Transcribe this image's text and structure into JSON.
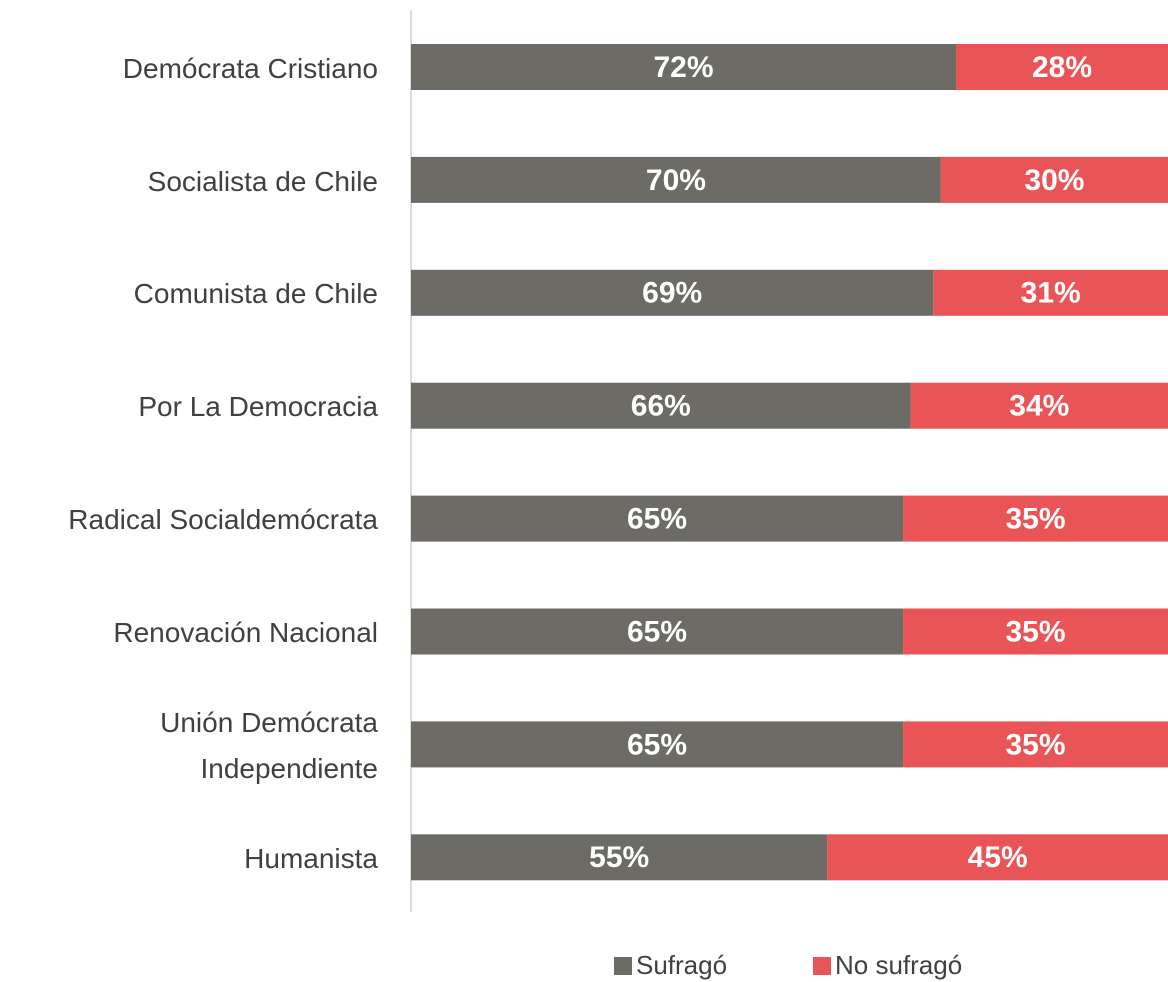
{
  "chart_data": {
    "type": "stacked-bar-horizontal",
    "categories": [
      "Demócrata Cristiano",
      "Socialista de Chile",
      "Comunista de Chile",
      "Por La Democracia",
      "Radical Socialdemócrata",
      "Renovación Nacional",
      "Unión Demócrata Independiente",
      "Humanista"
    ],
    "series": [
      {
        "name": "Sufragó",
        "color": "#6d6b66",
        "values": [
          72,
          70,
          69,
          66,
          65,
          65,
          65,
          55
        ],
        "value_labels": [
          "72%",
          "70%",
          "69%",
          "66%",
          "65%",
          "65%",
          "65%",
          "55%"
        ]
      },
      {
        "name": "No sufragó",
        "color": "#e95557",
        "values": [
          28,
          30,
          31,
          34,
          35,
          35,
          35,
          45
        ],
        "value_labels": [
          "28%",
          "30%",
          "31%",
          "34%",
          "35%",
          "35%",
          "35%",
          "45%"
        ]
      }
    ],
    "xlim": [
      0,
      100
    ],
    "legend": "bottom"
  }
}
